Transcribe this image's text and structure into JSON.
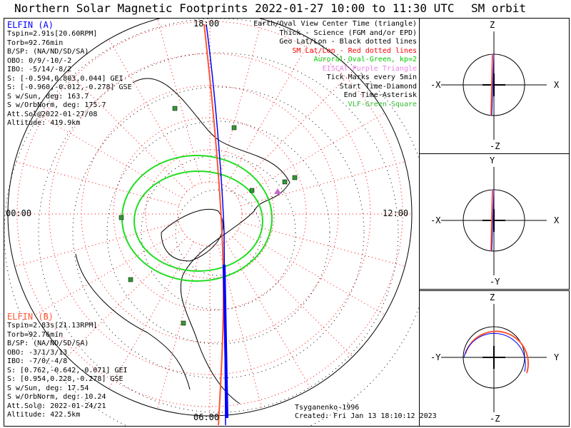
{
  "title": "Northern Solar Magnetic Footprints 2022-01-27 10:00 to 11:30 UTC",
  "sm_title": "SM orbit",
  "clock_labels": {
    "top": "18:00",
    "bottom": "06:00",
    "left": "00:00",
    "right": "12:00"
  },
  "elfin_a": {
    "name": "ELFIN (A)",
    "color": "#0000ff",
    "lines": [
      "Tspin=2.91s[20.60RPM]",
      "Torb=92.76min",
      "B/SP: (NA/ND/SD/SA)",
      "OBO: 0/9/-10/-2",
      "IBO: -5/14/-8/2",
      "S: [-0.594,0.803,0.044] GEI",
      "S: [-0.960,-0.012,-0.278] GSE",
      "S w/Sun, deg: 163.7",
      "S w/OrbNorm, deg: 175.7",
      "Att.Sol@2022-01-27/08",
      "Altitude: 419.9km"
    ]
  },
  "elfin_b": {
    "name": "ELFIN (B)",
    "color": "#ff5533",
    "lines": [
      "Tspin=2.83s[21.13RPM]",
      "Torb=92.76min",
      "B/SP: (NA/ND/SD/SA)",
      "OBO: -3/1/3/13",
      "IBO: -7/0/-4/8",
      "S: [0.762,-0.642,-0.071] GEI",
      "S: [0.954,0.228,-0.278] GSE",
      "S w/Sun, deg: 17.54",
      "S w/OrbNorm, deg: 10.24",
      "Att.Sol@: 2022-01-24/21",
      "Altitude: 422.5km"
    ]
  },
  "legend": [
    {
      "text": "Earth/Oval View Center Time (triangle)",
      "color": "#000000"
    },
    {
      "text": "Thick - Science (FGM and/or EPD)",
      "color": "#000000"
    },
    {
      "text": "Geo Lat/Lon - Black dotted lines",
      "color": "#000000"
    },
    {
      "text": "SM Lat/Lon - Red dotted lines",
      "color": "#ff0000"
    },
    {
      "text": "Auroral Oval-Green, kp=2",
      "color": "#00cc00"
    },
    {
      "text": "EISCAT-Purple Triangle",
      "color": "#ee82ee"
    },
    {
      "text": "Tick Marks every 5min",
      "color": "#000000"
    },
    {
      "text": "Start Time-Diamond",
      "color": "#000000"
    },
    {
      "text": "End Time-Asterisk",
      "color": "#000000"
    },
    {
      "text": "VLF-Green Square",
      "color": "#33bb33"
    }
  ],
  "model": "Tsyganenko-1996",
  "created": "Created: Fri Jan 13 18:10:12 2023",
  "orbit_panels": [
    {
      "top": "Z",
      "bottom": "-Z",
      "left": "-X",
      "right": "X"
    },
    {
      "top": "Y",
      "bottom": "-Y",
      "left": "-X",
      "right": "X"
    },
    {
      "top": "Z",
      "bottom": "-Z",
      "left": "-Y",
      "right": "Y"
    }
  ]
}
